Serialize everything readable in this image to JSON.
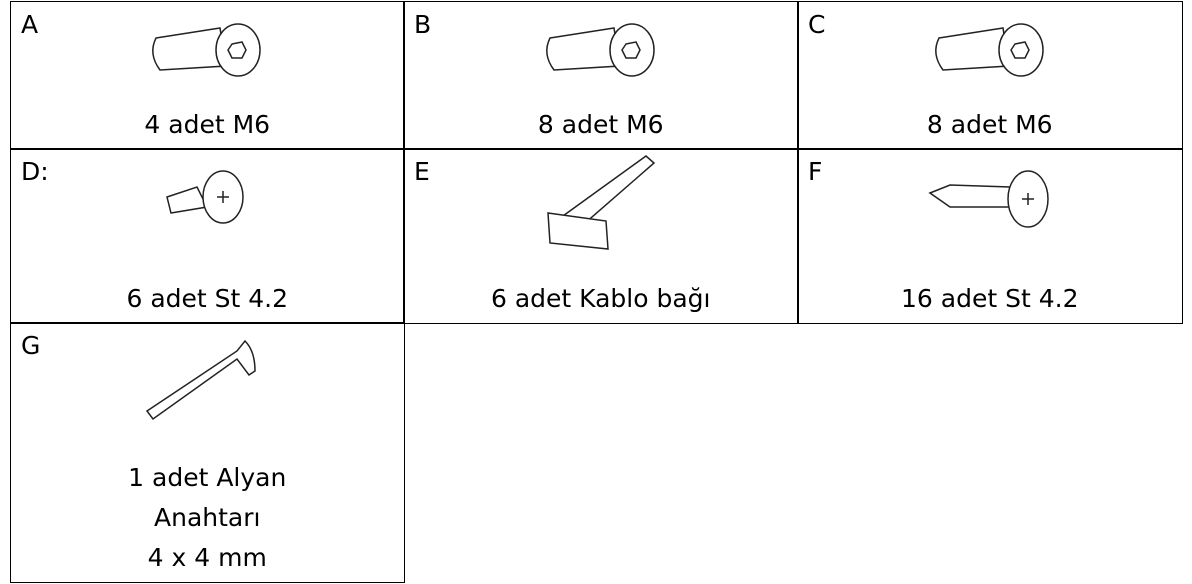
{
  "items": [
    {
      "letter": "A",
      "label": [
        "4 adet M6"
      ]
    },
    {
      "letter": "B",
      "label": [
        "8 adet M6"
      ]
    },
    {
      "letter": "C",
      "label": [
        "8 adet M6"
      ]
    },
    {
      "letter": "D:",
      "label": [
        "6 adet St 4.2"
      ]
    },
    {
      "letter": "E",
      "label": [
        "6 adet Kablo bağı"
      ]
    },
    {
      "letter": "F",
      "label": [
        "16 adet St 4.2"
      ]
    },
    {
      "letter": "G",
      "label": [
        "1 adet Alyan",
        "Anahtarı",
        "4 x 4 mm"
      ]
    }
  ]
}
